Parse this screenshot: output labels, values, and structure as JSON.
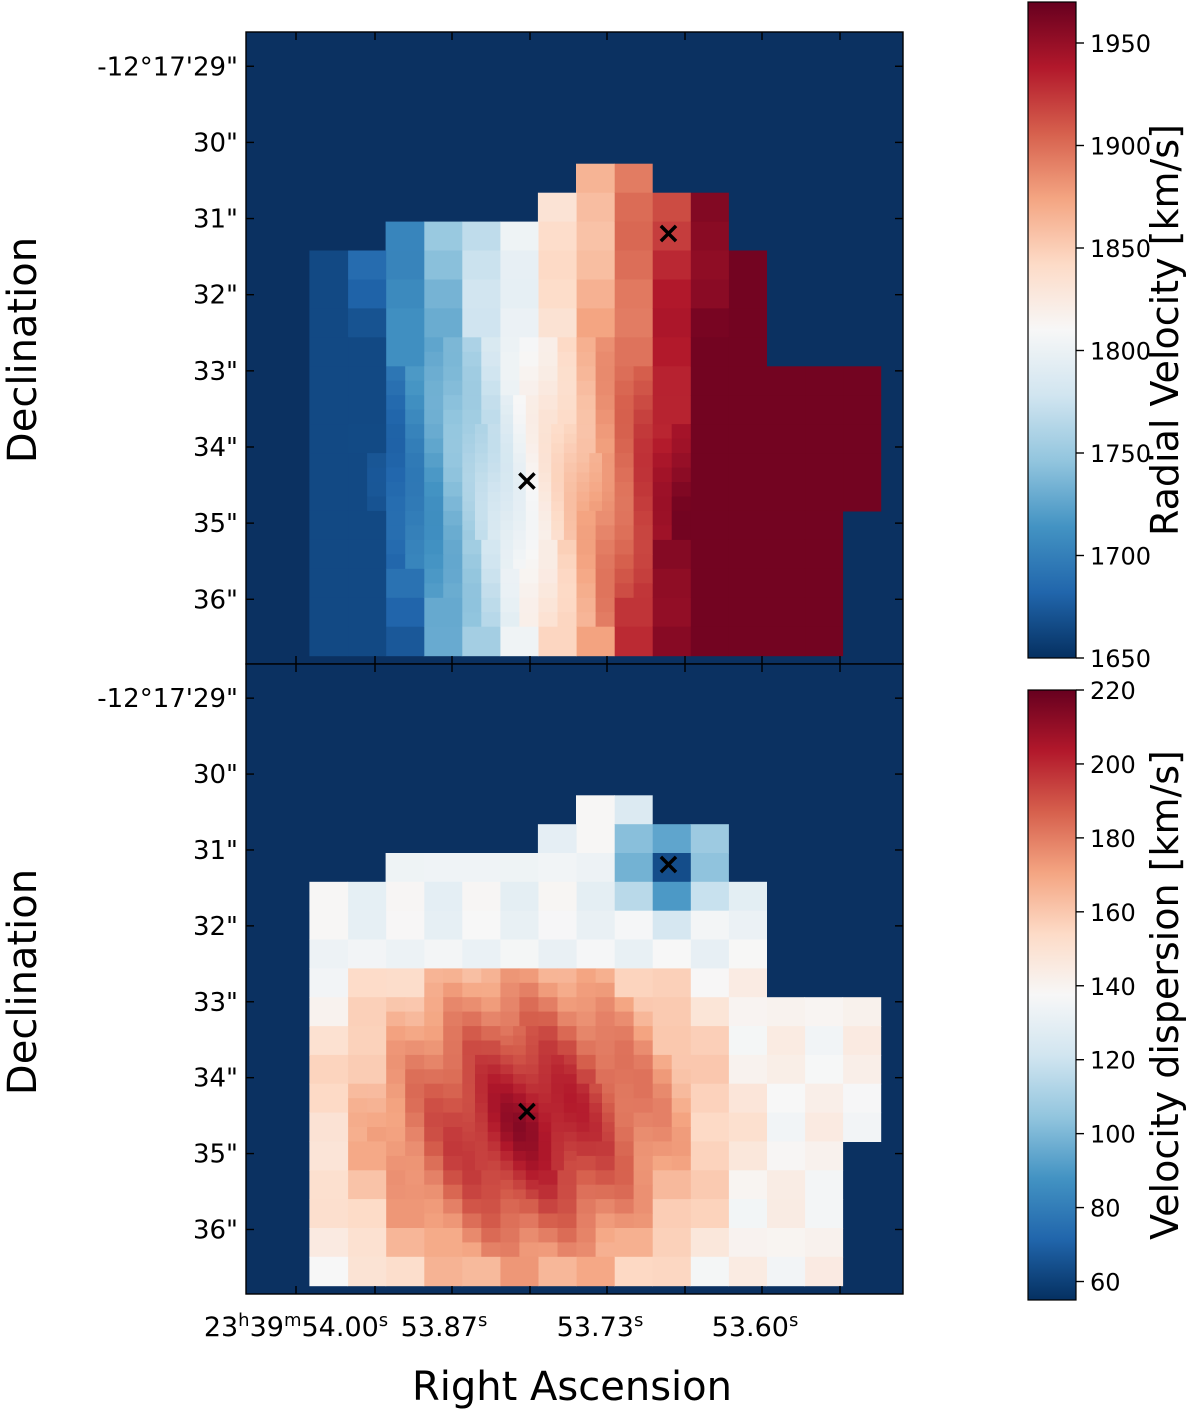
{
  "chart_data": [
    {
      "type": "heatmap",
      "panel": "top",
      "quantity": "Radial Velocity",
      "ylabel": "Declination",
      "xlabel": "",
      "colorbar": {
        "label": "Radial Velocity [km/s]",
        "range": [
          1650,
          1970
        ],
        "ticks": [
          1650,
          1700,
          1750,
          1800,
          1850,
          1900,
          1950
        ],
        "colormap": "RdBu_r"
      },
      "y_ticks": [
        "-12°17'29\"",
        "30\"",
        "31\"",
        "32\"",
        "33\"",
        "34\"",
        "35\"",
        "36\""
      ],
      "y_tick_values": [
        29,
        30,
        31,
        32,
        33,
        34,
        35,
        36
      ],
      "y_range": [
        28.55,
        36.85
      ],
      "x_ticks": [],
      "background_color": "#0b3161",
      "markers": [
        {
          "symbol": "×",
          "ra_offset_s": 0.0,
          "dec": 34.45
        },
        {
          "symbol": "×",
          "ra_offset_s": -0.104,
          "dec": 31.2
        }
      ],
      "field": {
        "center": {
          "ra_offset_s": 0.0,
          "dec": 34.45
        },
        "value_at_center": 1810,
        "gradient_per_s_ra": -1300,
        "min": 1665,
        "max": 1965
      }
    },
    {
      "type": "heatmap",
      "panel": "bottom",
      "quantity": "Velocity dispersion",
      "ylabel": "Declination",
      "xlabel": "Right Ascension",
      "colorbar": {
        "label": "Velocity dispersion [km/s]",
        "range": [
          55,
          220
        ],
        "ticks": [
          60,
          80,
          100,
          120,
          140,
          160,
          180,
          200,
          220
        ],
        "colormap": "RdBu_r"
      },
      "y_ticks": [
        "-12°17'29\"",
        "30\"",
        "31\"",
        "32\"",
        "33\"",
        "34\"",
        "35\"",
        "36\""
      ],
      "y_tick_values": [
        29,
        30,
        31,
        32,
        33,
        34,
        35,
        36
      ],
      "y_range": [
        28.55,
        36.85
      ],
      "x_ticks": [
        {
          "h": "23",
          "m": "39",
          "s": "54.00"
        },
        {
          "s": "53.87"
        },
        {
          "s": "53.73"
        },
        {
          "s": "53.60"
        }
      ],
      "background_color": "#0b3161",
      "markers": [
        {
          "symbol": "×",
          "ra_offset_s": 0.0,
          "dec": 34.45
        },
        {
          "symbol": "×",
          "ra_offset_s": -0.104,
          "dec": 31.2
        }
      ],
      "field": {
        "peak": {
          "ra_offset_s": 0.0,
          "dec": 34.6,
          "value": 210
        },
        "edge_value": 140,
        "secondary_minimum": {
          "ra_offset_s": -0.104,
          "dec": 31.2,
          "value": 62
        },
        "min": 55,
        "max": 215
      }
    }
  ],
  "labels": {
    "ylabel_top": "Declination",
    "ylabel_bottom": "Declination",
    "xlabel": "Right Ascension",
    "cbar_top": "Radial Velocity [km/s]",
    "cbar_bottom": "Velocity dispersion [km/s]",
    "xtick_first_h": "23",
    "xtick_first_hunit": "h",
    "xtick_first_m": "39",
    "xtick_first_munit": "m",
    "xtick_first_s": "54.00",
    "xtick_sunit": "s",
    "xtick_2": "53.87",
    "xtick_3": "53.73",
    "xtick_4": "53.60"
  }
}
